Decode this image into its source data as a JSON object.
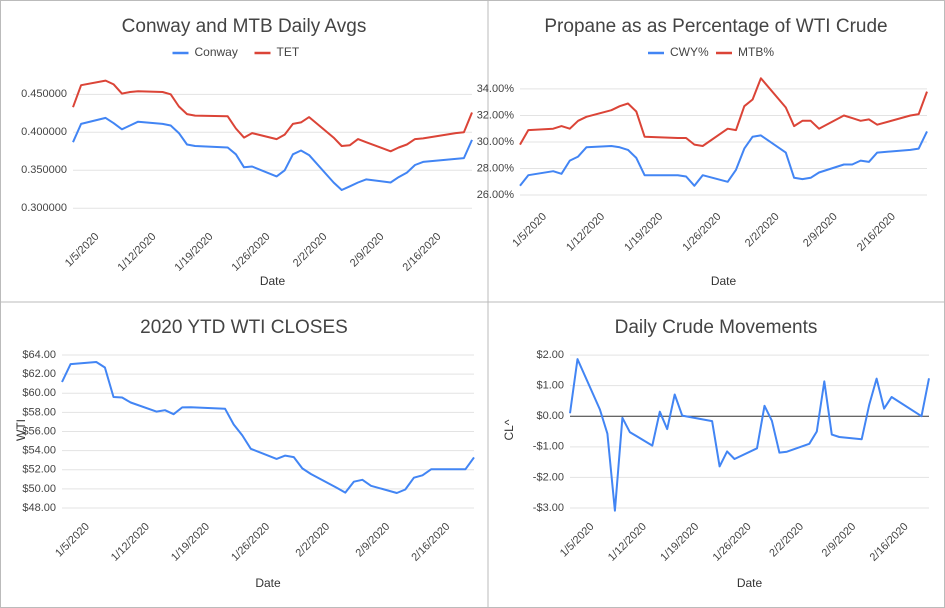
{
  "chart_data": [
    {
      "type": "line",
      "title": "Conway and MTB Daily Avgs",
      "xlabel": "Date",
      "legend": "top",
      "x": [
        "2020-01-02",
        "2020-01-03",
        "2020-01-06",
        "2020-01-07",
        "2020-01-08",
        "2020-01-09",
        "2020-01-10",
        "2020-01-13",
        "2020-01-14",
        "2020-01-15",
        "2020-01-16",
        "2020-01-17",
        "2020-01-21",
        "2020-01-22",
        "2020-01-23",
        "2020-01-24",
        "2020-01-27",
        "2020-01-28",
        "2020-01-29",
        "2020-01-30",
        "2020-01-31",
        "2020-02-03",
        "2020-02-04",
        "2020-02-05",
        "2020-02-06",
        "2020-02-07",
        "2020-02-10",
        "2020-02-11",
        "2020-02-12",
        "2020-02-13",
        "2020-02-14",
        "2020-02-18",
        "2020-02-19",
        "2020-02-20"
      ],
      "series": [
        {
          "name": "Conway",
          "color": "#4285f4",
          "values": [
            0.387,
            0.411,
            0.419,
            0.412,
            0.404,
            0.409,
            0.414,
            0.411,
            0.409,
            0.399,
            0.384,
            0.382,
            0.38,
            0.371,
            0.354,
            0.355,
            0.342,
            0.35,
            0.371,
            0.376,
            0.37,
            0.334,
            0.324,
            0.329,
            0.334,
            0.338,
            0.334,
            0.341,
            0.347,
            0.357,
            0.361,
            0.365,
            0.366,
            0.39
          ]
        },
        {
          "name": "TET",
          "color": "#db4437",
          "values": [
            0.433,
            0.462,
            0.468,
            0.463,
            0.451,
            0.453,
            0.454,
            0.453,
            0.45,
            0.434,
            0.424,
            0.422,
            0.421,
            0.405,
            0.393,
            0.399,
            0.391,
            0.397,
            0.411,
            0.413,
            0.42,
            0.393,
            0.382,
            0.383,
            0.391,
            0.387,
            0.375,
            0.38,
            0.384,
            0.391,
            0.392,
            0.399,
            0.4,
            0.426
          ]
        }
      ],
      "xlim": [
        "2020-01-02",
        "2020-02-20"
      ],
      "xticks": [
        {
          "value": "2020-01-05",
          "label": "1/5/2020"
        },
        {
          "value": "2020-01-12",
          "label": "1/12/2020"
        },
        {
          "value": "2020-01-19",
          "label": "1/19/2020"
        },
        {
          "value": "2020-01-26",
          "label": "1/26/2020"
        },
        {
          "value": "2020-02-02",
          "label": "2/2/2020"
        },
        {
          "value": "2020-02-09",
          "label": "2/9/2020"
        },
        {
          "value": "2020-02-16",
          "label": "2/16/2020"
        }
      ],
      "ylim": [
        0.278,
        0.482
      ],
      "yticks": [
        {
          "value": 0.3,
          "label": "0.300000"
        },
        {
          "value": 0.35,
          "label": "0.350000"
        },
        {
          "value": 0.4,
          "label": "0.400000"
        },
        {
          "value": 0.45,
          "label": "0.450000"
        }
      ],
      "grid": true
    },
    {
      "type": "line",
      "title": "Propane as as Percentage of WTI Crude",
      "xlabel": "Date",
      "legend": "top",
      "x": [
        "2020-01-02",
        "2020-01-03",
        "2020-01-06",
        "2020-01-07",
        "2020-01-08",
        "2020-01-09",
        "2020-01-10",
        "2020-01-13",
        "2020-01-14",
        "2020-01-15",
        "2020-01-16",
        "2020-01-17",
        "2020-01-21",
        "2020-01-22",
        "2020-01-23",
        "2020-01-24",
        "2020-01-27",
        "2020-01-28",
        "2020-01-29",
        "2020-01-30",
        "2020-01-31",
        "2020-02-03",
        "2020-02-04",
        "2020-02-05",
        "2020-02-06",
        "2020-02-07",
        "2020-02-10",
        "2020-02-11",
        "2020-02-12",
        "2020-02-13",
        "2020-02-14",
        "2020-02-18",
        "2020-02-19",
        "2020-02-20"
      ],
      "series": [
        {
          "name": "CWY%",
          "color": "#4285f4",
          "values": [
            26.7,
            27.5,
            27.8,
            27.6,
            28.6,
            28.9,
            29.6,
            29.7,
            29.6,
            29.4,
            28.8,
            27.5,
            27.5,
            27.4,
            26.7,
            27.5,
            27.0,
            27.9,
            29.5,
            30.4,
            30.5,
            29.2,
            27.3,
            27.2,
            27.3,
            27.7,
            28.3,
            28.3,
            28.6,
            28.5,
            29.2,
            29.4,
            29.5,
            30.8
          ]
        },
        {
          "name": "MTB%",
          "color": "#db4437",
          "values": [
            29.8,
            30.9,
            31.0,
            31.2,
            31.0,
            31.6,
            31.9,
            32.4,
            32.7,
            32.9,
            32.3,
            30.4,
            30.3,
            30.3,
            29.8,
            29.7,
            31.0,
            30.9,
            32.7,
            33.2,
            34.8,
            32.6,
            31.2,
            31.6,
            31.6,
            31.0,
            32.0,
            31.8,
            31.6,
            31.7,
            31.3,
            32.0,
            32.1,
            33.8
          ]
        }
      ],
      "xlim": [
        "2020-01-02",
        "2020-02-20"
      ],
      "xticks": [
        {
          "value": "2020-01-05",
          "label": "1/5/2020"
        },
        {
          "value": "2020-01-12",
          "label": "1/12/2020"
        },
        {
          "value": "2020-01-19",
          "label": "1/19/2020"
        },
        {
          "value": "2020-01-26",
          "label": "1/26/2020"
        },
        {
          "value": "2020-02-02",
          "label": "2/2/2020"
        },
        {
          "value": "2020-02-09",
          "label": "2/9/2020"
        },
        {
          "value": "2020-02-16",
          "label": "2/16/2020"
        }
      ],
      "ylim": [
        25.25,
        35.05
      ],
      "yticks": [
        {
          "value": 26,
          "label": "26.00%"
        },
        {
          "value": 28,
          "label": "28.00%"
        },
        {
          "value": 30,
          "label": "30.00%"
        },
        {
          "value": 32,
          "label": "32.00%"
        },
        {
          "value": 34,
          "label": "34.00%"
        }
      ],
      "grid": true
    },
    {
      "type": "line",
      "title": "2020 YTD WTI CLOSES",
      "xlabel": "Date",
      "ylabel": "WTI",
      "color": "#4285f4",
      "x": [
        "2020-01-02",
        "2020-01-03",
        "2020-01-06",
        "2020-01-07",
        "2020-01-08",
        "2020-01-09",
        "2020-01-10",
        "2020-01-13",
        "2020-01-14",
        "2020-01-15",
        "2020-01-16",
        "2020-01-17",
        "2020-01-21",
        "2020-01-22",
        "2020-01-23",
        "2020-01-24",
        "2020-01-27",
        "2020-01-28",
        "2020-01-29",
        "2020-01-30",
        "2020-01-31",
        "2020-02-03",
        "2020-02-04",
        "2020-02-05",
        "2020-02-06",
        "2020-02-07",
        "2020-02-10",
        "2020-02-11",
        "2020-02-12",
        "2020-02-13",
        "2020-02-14",
        "2020-02-18",
        "2020-02-19"
      ],
      "values": [
        61.18,
        63.05,
        63.27,
        62.7,
        59.61,
        59.56,
        59.04,
        58.08,
        58.23,
        57.81,
        58.52,
        58.54,
        58.38,
        56.74,
        55.59,
        54.19,
        53.14,
        53.48,
        53.33,
        52.14,
        51.56,
        50.11,
        49.61,
        50.75,
        50.95,
        50.32,
        49.57,
        49.94,
        51.17,
        51.42,
        52.05,
        52.05,
        53.29
      ],
      "xlim": [
        "2020-01-02",
        "2020-02-19"
      ],
      "xticks": [
        {
          "value": "2020-01-05",
          "label": "1/5/2020"
        },
        {
          "value": "2020-01-12",
          "label": "1/12/2020"
        },
        {
          "value": "2020-01-19",
          "label": "1/19/2020"
        },
        {
          "value": "2020-01-26",
          "label": "1/26/2020"
        },
        {
          "value": "2020-02-02",
          "label": "2/2/2020"
        },
        {
          "value": "2020-02-09",
          "label": "2/9/2020"
        },
        {
          "value": "2020-02-16",
          "label": "2/16/2020"
        }
      ],
      "ylim": [
        47.27,
        65.05
      ],
      "yticks": [
        {
          "value": 48,
          "label": "$48.00"
        },
        {
          "value": 50,
          "label": "$50.00"
        },
        {
          "value": 52,
          "label": "$52.00"
        },
        {
          "value": 54,
          "label": "$54.00"
        },
        {
          "value": 56,
          "label": "$56.00"
        },
        {
          "value": 58,
          "label": "$58.00"
        },
        {
          "value": 60,
          "label": "$60.00"
        },
        {
          "value": 62,
          "label": "$62.00"
        },
        {
          "value": 64,
          "label": "$64.00"
        }
      ],
      "grid": true
    },
    {
      "type": "line",
      "title": "Daily Crude Movements",
      "xlabel": "Date",
      "ylabel": "CL^",
      "color": "#4285f4",
      "zero_line": true,
      "x": [
        "2020-01-02",
        "2020-01-03",
        "2020-01-06",
        "2020-01-07",
        "2020-01-08",
        "2020-01-09",
        "2020-01-10",
        "2020-01-13",
        "2020-01-14",
        "2020-01-15",
        "2020-01-16",
        "2020-01-17",
        "2020-01-21",
        "2020-01-22",
        "2020-01-23",
        "2020-01-24",
        "2020-01-27",
        "2020-01-28",
        "2020-01-29",
        "2020-01-30",
        "2020-01-31",
        "2020-02-03",
        "2020-02-04",
        "2020-02-05",
        "2020-02-06",
        "2020-02-07",
        "2020-02-10",
        "2020-02-11",
        "2020-02-12",
        "2020-02-13",
        "2020-02-14",
        "2020-02-18",
        "2020-02-19"
      ],
      "values": [
        0.1,
        1.87,
        0.22,
        -0.57,
        -3.09,
        -0.05,
        -0.52,
        -0.96,
        0.15,
        -0.42,
        0.71,
        0.02,
        -0.16,
        -1.64,
        -1.15,
        -1.4,
        -1.05,
        0.34,
        -0.15,
        -1.19,
        -1.16,
        -0.9,
        -0.5,
        1.14,
        -0.6,
        -0.68,
        -0.75,
        0.37,
        1.23,
        0.25,
        0.63,
        0,
        1.24
      ],
      "xlim": [
        "2020-01-02",
        "2020-02-19"
      ],
      "xticks": [
        {
          "value": "2020-01-05",
          "label": "1/5/2020"
        },
        {
          "value": "2020-01-12",
          "label": "1/12/2020"
        },
        {
          "value": "2020-01-19",
          "label": "1/19/2020"
        },
        {
          "value": "2020-01-26",
          "label": "1/26/2020"
        },
        {
          "value": "2020-02-02",
          "label": "2/2/2020"
        },
        {
          "value": "2020-02-09",
          "label": "2/9/2020"
        },
        {
          "value": "2020-02-16",
          "label": "2/16/2020"
        }
      ],
      "ylim": [
        -3.23,
        2.33
      ],
      "yticks": [
        {
          "value": -3,
          "label": "-$3.00"
        },
        {
          "value": -2,
          "label": "-$2.00"
        },
        {
          "value": -1,
          "label": "-$1.00"
        },
        {
          "value": 0,
          "label": "$0.00"
        },
        {
          "value": 1,
          "label": "$1.00"
        },
        {
          "value": 2,
          "label": "$2.00"
        }
      ],
      "grid": true
    }
  ]
}
